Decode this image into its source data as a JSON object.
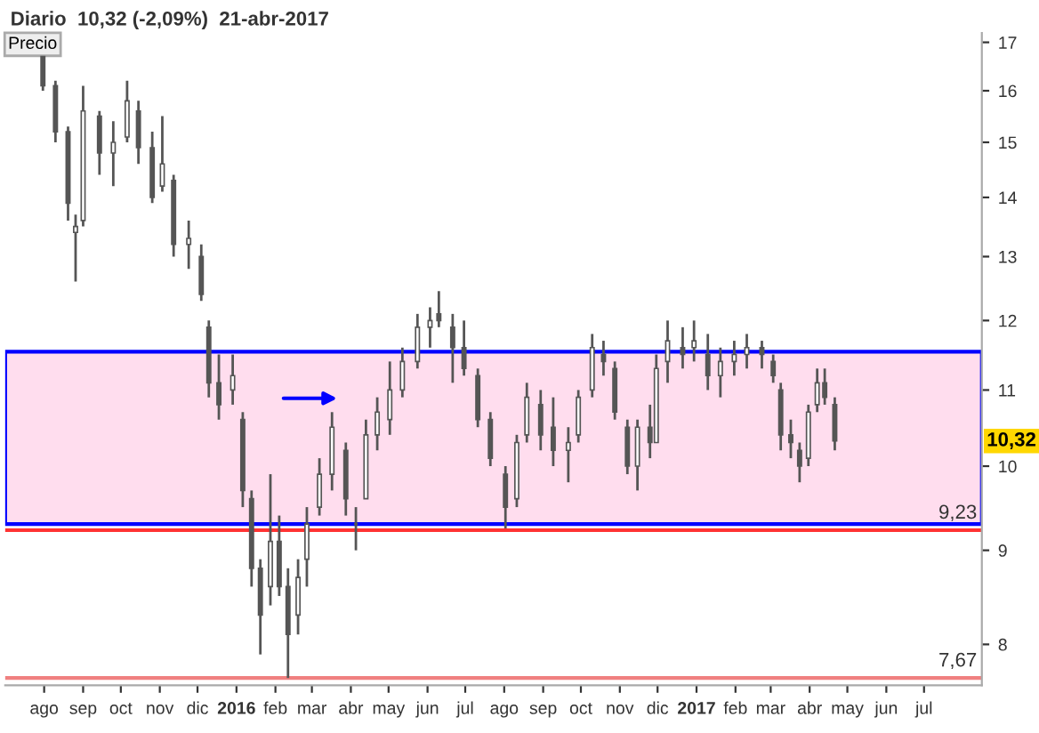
{
  "chart_data": {
    "type": "candlestick",
    "title": "Diario  10,32 (-2,09%)  21-abr-2017",
    "annotations": [
      "Precio",
      {
        "text": "10,32",
        "y": 10.32
      }
    ],
    "color": "#555555",
    "x": [
      "2015-07-31",
      "2015-08-10",
      "2015-08-20",
      "2015-08-26",
      "2015-09-01",
      "2015-09-14",
      "2015-09-25",
      "2015-10-06",
      "2015-10-15",
      "2015-10-26",
      "2015-11-03",
      "2015-11-12",
      "2015-11-24",
      "2015-12-04",
      "2015-12-10",
      "2015-12-18",
      "2015-12-29",
      "2016-01-06",
      "2016-01-13",
      "2016-01-20",
      "2016-01-28",
      "2016-02-04",
      "2016-02-11",
      "2016-02-19",
      "2016-02-26",
      "2016-03-07",
      "2016-03-17",
      "2016-03-28",
      "2016-04-05",
      "2016-04-13",
      "2016-04-22",
      "2016-05-02",
      "2016-05-12",
      "2016-05-24",
      "2016-06-03",
      "2016-06-10",
      "2016-06-21",
      "2016-06-30",
      "2016-07-11",
      "2016-07-21",
      "2016-08-02",
      "2016-08-11",
      "2016-08-19",
      "2016-08-30",
      "2016-09-09",
      "2016-09-21",
      "2016-09-29",
      "2016-10-10",
      "2016-10-19",
      "2016-10-28",
      "2016-11-07",
      "2016-11-15",
      "2016-11-25",
      "2016-11-30",
      "2016-12-09",
      "2016-12-21",
      "2016-12-30",
      "2017-01-10",
      "2017-01-20",
      "2017-01-31",
      "2017-02-10",
      "2017-02-22",
      "2017-03-03",
      "2017-03-09",
      "2017-03-17",
      "2017-03-24",
      "2017-03-31",
      "2017-04-07",
      "2017-04-13",
      "2017-04-21"
    ],
    "ohlc": [
      [
        16.7,
        16.9,
        16.0,
        16.1
      ],
      [
        16.1,
        16.2,
        15.0,
        15.2
      ],
      [
        15.2,
        15.3,
        13.6,
        13.9
      ],
      [
        13.4,
        13.7,
        12.6,
        13.5
      ],
      [
        13.6,
        16.1,
        13.5,
        15.6
      ],
      [
        15.5,
        15.6,
        14.4,
        14.8
      ],
      [
        14.8,
        15.4,
        14.2,
        15.0
      ],
      [
        15.1,
        16.2,
        15.0,
        15.8
      ],
      [
        15.6,
        15.8,
        14.6,
        14.9
      ],
      [
        14.9,
        15.2,
        13.9,
        14.0
      ],
      [
        14.2,
        15.5,
        14.1,
        14.6
      ],
      [
        14.3,
        14.4,
        13.0,
        13.2
      ],
      [
        13.2,
        13.6,
        12.8,
        13.3
      ],
      [
        13.0,
        13.2,
        12.3,
        12.4
      ],
      [
        11.9,
        12.0,
        10.9,
        11.1
      ],
      [
        11.1,
        11.5,
        10.6,
        10.8
      ],
      [
        11.0,
        11.5,
        10.8,
        11.2
      ],
      [
        10.6,
        10.7,
        9.5,
        9.7
      ],
      [
        9.6,
        9.7,
        8.6,
        8.8
      ],
      [
        8.8,
        8.9,
        7.9,
        8.3
      ],
      [
        8.6,
        9.9,
        8.4,
        9.1
      ],
      [
        9.1,
        9.4,
        8.5,
        8.6
      ],
      [
        8.6,
        8.8,
        7.67,
        8.1
      ],
      [
        8.3,
        8.9,
        8.1,
        8.7
      ],
      [
        8.9,
        9.5,
        8.6,
        9.3
      ],
      [
        9.5,
        10.1,
        9.4,
        9.9
      ],
      [
        9.9,
        10.7,
        9.7,
        10.5
      ],
      [
        10.2,
        10.3,
        9.4,
        9.6
      ],
      [
        9.3,
        9.5,
        9.0,
        9.3
      ],
      [
        9.6,
        10.6,
        9.6,
        10.4
      ],
      [
        10.4,
        10.9,
        10.2,
        10.7
      ],
      [
        10.6,
        11.4,
        10.4,
        11.0
      ],
      [
        11.0,
        11.6,
        10.9,
        11.4
      ],
      [
        11.4,
        12.1,
        11.3,
        11.9
      ],
      [
        11.9,
        12.2,
        11.6,
        12.0
      ],
      [
        12.1,
        12.45,
        11.9,
        12.0
      ],
      [
        11.9,
        12.1,
        11.1,
        11.6
      ],
      [
        11.6,
        12.0,
        11.2,
        11.3
      ],
      [
        11.2,
        11.3,
        10.5,
        10.6
      ],
      [
        10.6,
        10.7,
        10.0,
        10.1
      ],
      [
        9.9,
        10.0,
        9.25,
        9.5
      ],
      [
        9.6,
        10.4,
        9.5,
        10.3
      ],
      [
        10.4,
        11.1,
        10.3,
        10.9
      ],
      [
        10.8,
        11.0,
        10.2,
        10.4
      ],
      [
        10.5,
        10.9,
        10.0,
        10.2
      ],
      [
        10.2,
        10.5,
        9.8,
        10.3
      ],
      [
        10.4,
        11.0,
        10.3,
        10.9
      ],
      [
        11.0,
        11.8,
        10.9,
        11.6
      ],
      [
        11.5,
        11.7,
        11.2,
        11.4
      ],
      [
        11.3,
        11.4,
        10.6,
        10.7
      ],
      [
        10.5,
        10.6,
        9.9,
        10.0
      ],
      [
        10.0,
        10.6,
        9.7,
        10.5
      ],
      [
        10.5,
        10.8,
        10.1,
        10.3
      ],
      [
        10.3,
        11.5,
        10.3,
        11.3
      ],
      [
        11.4,
        12.0,
        11.1,
        11.7
      ],
      [
        11.6,
        11.9,
        11.3,
        11.5
      ],
      [
        11.6,
        12.0,
        11.4,
        11.7
      ],
      [
        11.5,
        11.8,
        11.0,
        11.2
      ],
      [
        11.2,
        11.6,
        10.9,
        11.4
      ],
      [
        11.4,
        11.7,
        11.2,
        11.5
      ],
      [
        11.5,
        11.8,
        11.3,
        11.6
      ],
      [
        11.6,
        11.7,
        11.3,
        11.5
      ],
      [
        11.4,
        11.5,
        11.1,
        11.2
      ],
      [
        11.0,
        11.1,
        10.2,
        10.4
      ],
      [
        10.4,
        10.6,
        10.1,
        10.3
      ],
      [
        10.2,
        10.3,
        9.8,
        10.0
      ],
      [
        10.1,
        10.8,
        10.0,
        10.7
      ],
      [
        10.8,
        11.3,
        10.7,
        11.1
      ],
      [
        11.1,
        11.3,
        10.8,
        10.9
      ],
      [
        10.8,
        10.9,
        10.2,
        10.32
      ]
    ],
    "log": true,
    "xlim": [
      "2015-07-01",
      "2017-08-16"
    ],
    "xticks": [
      {
        "value": "2015-08-01",
        "label": "ago"
      },
      {
        "value": "2015-09-01",
        "label": "sep"
      },
      {
        "value": "2015-10-01",
        "label": "oct"
      },
      {
        "value": "2015-11-01",
        "label": "nov"
      },
      {
        "value": "2015-12-01",
        "label": "dic"
      },
      {
        "value": "2016-01-01",
        "label": "2016"
      },
      {
        "value": "2016-02-01",
        "label": "feb"
      },
      {
        "value": "2016-03-01",
        "label": "mar"
      },
      {
        "value": "2016-04-01",
        "label": "abr"
      },
      {
        "value": "2016-05-01",
        "label": "may"
      },
      {
        "value": "2016-06-01",
        "label": "jun"
      },
      {
        "value": "2016-07-01",
        "label": "jul"
      },
      {
        "value": "2016-08-01",
        "label": "ago"
      },
      {
        "value": "2016-09-01",
        "label": "sep"
      },
      {
        "value": "2016-10-01",
        "label": "oct"
      },
      {
        "value": "2016-11-01",
        "label": "nov"
      },
      {
        "value": "2016-12-01",
        "label": "dic"
      },
      {
        "value": "2017-01-01",
        "label": "2017"
      },
      {
        "value": "2017-02-01",
        "label": "feb"
      },
      {
        "value": "2017-03-01",
        "label": "mar"
      },
      {
        "value": "2017-04-01",
        "label": "abr"
      },
      {
        "value": "2017-05-01",
        "label": "may"
      },
      {
        "value": "2017-06-01",
        "label": "jun"
      },
      {
        "value": "2017-07-01",
        "label": "jul"
      }
    ],
    "ylim": [
      7.6,
      17.2
    ],
    "yticks": [
      8,
      9,
      10,
      11,
      12,
      13,
      14,
      15,
      16,
      17
    ],
    "ref_lines": [
      {
        "axis": "y",
        "value": 9.23,
        "label": "9,23",
        "color": "#ff3333"
      },
      {
        "axis": "y",
        "value": 7.67,
        "label": "7,67",
        "color": "#f08080"
      }
    ],
    "bands": [
      {
        "axis": "y",
        "from": 9.3,
        "to": 11.54,
        "color": "#ffddee"
      }
    ],
    "grid": false,
    "legend": false
  }
}
